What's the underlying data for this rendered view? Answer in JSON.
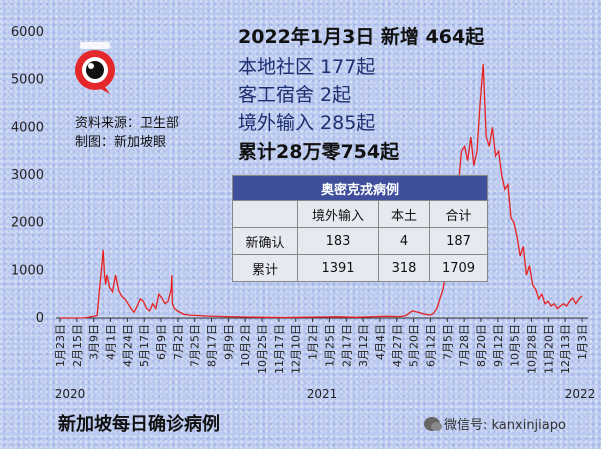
{
  "chart_data": {
    "type": "line",
    "color": "#e8201f",
    "ylim": [
      0,
      6000
    ],
    "yticks": [
      0,
      1000,
      2000,
      3000,
      4000,
      5000,
      6000
    ],
    "xticks": [
      "1月23日",
      "2月15日",
      "3月9日",
      "4月1日",
      "4月24日",
      "5月17日",
      "6月9日",
      "7月2日",
      "7月25日",
      "8月17日",
      "9月9日",
      "10月2日",
      "10月25日",
      "11月17日",
      "12月10日",
      "1月2日",
      "1月25日",
      "2月17日",
      "3月12日",
      "4月4日",
      "4月27日",
      "5月20日",
      "6月12日",
      "7月5日",
      "7月28日",
      "8月20日",
      "9月12日",
      "10月5日",
      "10月28日",
      "11月20日",
      "12月13日",
      "1月3日"
    ],
    "years": [
      "2020",
      "2021",
      "2022"
    ],
    "x": [
      0,
      20,
      40,
      60,
      64,
      67,
      70,
      72,
      74,
      76,
      78,
      80,
      85,
      90,
      95,
      100,
      105,
      110,
      115,
      120,
      125,
      130,
      135,
      140,
      145,
      150,
      155,
      160,
      165,
      170,
      175,
      180,
      181,
      182,
      185,
      190,
      200,
      210,
      240,
      270,
      300,
      330,
      360,
      390,
      420,
      450,
      480,
      510,
      530,
      550,
      560,
      570,
      580,
      590,
      600,
      605,
      610,
      615,
      620,
      625,
      630,
      635,
      640,
      645,
      650,
      655,
      660,
      665,
      670,
      675,
      680,
      685,
      690,
      695,
      700,
      705,
      710,
      715,
      720,
      725,
      730,
      735,
      740,
      745,
      750,
      755,
      760,
      765,
      770,
      775,
      780,
      785,
      790,
      795,
      800,
      805,
      810,
      815,
      820,
      825,
      830,
      835,
      840,
      845
    ],
    "values": [
      0,
      1,
      2,
      50,
      600,
      1000,
      1426,
      900,
      700,
      900,
      800,
      650,
      550,
      900,
      580,
      450,
      400,
      300,
      200,
      120,
      250,
      400,
      350,
      200,
      150,
      300,
      200,
      500,
      420,
      300,
      350,
      600,
      900,
      300,
      200,
      150,
      80,
      60,
      40,
      30,
      20,
      15,
      10,
      15,
      20,
      25,
      15,
      30,
      35,
      30,
      50,
      150,
      120,
      80,
      60,
      100,
      200,
      400,
      600,
      1000,
      1300,
      1800,
      2200,
      2800,
      3500,
      3600,
      3300,
      3800,
      3200,
      3500,
      4500,
      5324,
      3800,
      3600,
      4000,
      3400,
      3500,
      3000,
      2700,
      2800,
      2100,
      2000,
      1700,
      1300,
      1500,
      900,
      1100,
      700,
      600,
      400,
      500,
      300,
      350,
      250,
      300,
      200,
      250,
      300,
      250,
      350,
      420,
      300,
      400,
      464
    ]
  },
  "header": {
    "date_line": "2022年1月3日 新增 464起",
    "community": "本地社区 177起",
    "dormitory": "客工宿舍 2起",
    "imported": "境外输入 285起",
    "total": "累计28万零754起"
  },
  "source": {
    "data_source": "资料来源：卫生部",
    "made_by": "制图：新加坡眼"
  },
  "omicron_table": {
    "title": "奥密克戎病例",
    "headers": [
      "",
      "境外输入",
      "本土",
      "合计"
    ],
    "rows": [
      {
        "label": "新确认",
        "imported": "183",
        "local": "4",
        "total": "187"
      },
      {
        "label": "累计",
        "imported": "1391",
        "local": "318",
        "total": "1709"
      }
    ]
  },
  "footer": {
    "title": "新加坡每日确诊病例",
    "wechat": "微信号: kanxinjiapo"
  }
}
